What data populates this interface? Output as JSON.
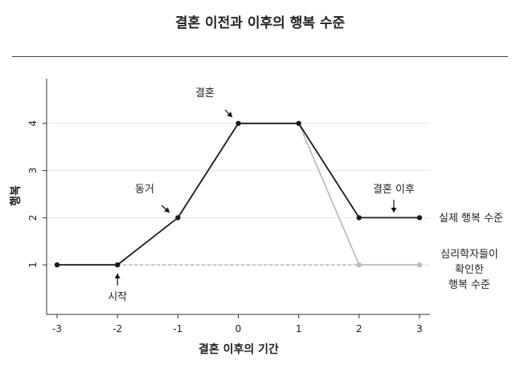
{
  "chart_data": {
    "type": "line",
    "title": "결혼 이전과 이후의 행복 수준",
    "xlabel": "결혼 이후의 기간",
    "ylabel": "행복",
    "xlim": [
      -3,
      3
    ],
    "ylim": [
      0,
      4.9
    ],
    "x_ticks": [
      "-3",
      "-2",
      "-1",
      "0",
      "1",
      "2",
      "3"
    ],
    "y_ticks": [
      "1",
      "2",
      "3",
      "4"
    ],
    "grid": "horizontal",
    "series": [
      {
        "name": "실제 행복 수준",
        "color": "#1a1a1a",
        "style": "solid",
        "x": [
          -3,
          -2,
          -1,
          0,
          1,
          2,
          3
        ],
        "y": [
          1,
          1,
          2,
          4,
          4,
          2,
          2
        ]
      },
      {
        "name": "심리학자들이 확인한 행복 수준",
        "color": "#bdbdbd",
        "style": "solid",
        "x": [
          1,
          2,
          3
        ],
        "y": [
          4,
          1,
          1
        ]
      },
      {
        "name": "",
        "color": "#9e9e9e",
        "style": "dashed",
        "x": [
          -2,
          3
        ],
        "y": [
          1,
          1
        ]
      }
    ],
    "annotations": [
      {
        "text": "시작",
        "x": -2,
        "y": 1
      },
      {
        "text": "동거",
        "x": -1,
        "y": 2
      },
      {
        "text": "결혼",
        "x": 0,
        "y": 4
      },
      {
        "text": "결혼 이후",
        "x": 2.5,
        "y": 2
      }
    ],
    "series_labels": [
      {
        "lines": [
          "실제 행복 수준"
        ]
      },
      {
        "lines": [
          "심리학자들이",
          "확인한",
          "행복 수준"
        ]
      }
    ]
  }
}
